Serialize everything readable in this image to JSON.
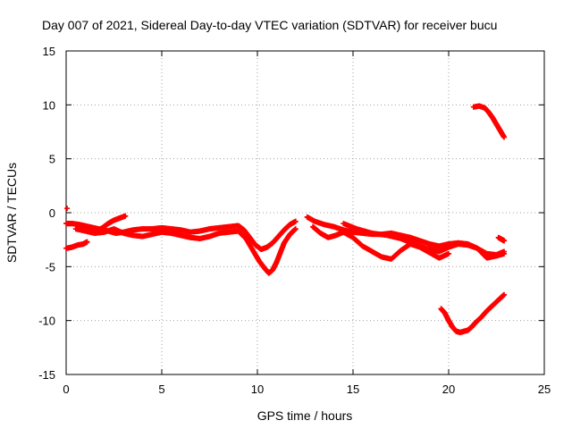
{
  "chart_data": {
    "type": "scatter",
    "title": "Day 007 of 2021, Sidereal Day-to-day VTEC variation (SDTVAR) for receiver bucu",
    "xlabel": "GPS time / hours",
    "ylabel": "SDTVAR / TECUs",
    "xlim": [
      0,
      25
    ],
    "ylim": [
      -15,
      15
    ],
    "xticks": [
      0,
      5,
      10,
      15,
      20,
      25
    ],
    "yticks": [
      -15,
      -10,
      -5,
      0,
      5,
      10,
      15
    ],
    "grid": true,
    "marker": "+",
    "color": "#ff0000",
    "series": [
      {
        "name": "track-upper-main",
        "x": [
          0.0,
          0.3,
          0.7,
          1.2,
          1.7,
          2.2,
          2.6,
          3.0,
          3.5,
          4.0,
          4.5,
          5.0,
          5.5,
          6.0,
          6.5,
          7.0,
          7.5,
          8.0,
          8.5,
          9.0,
          9.3,
          9.6,
          9.9,
          10.2,
          10.5,
          10.8,
          11.1,
          11.4,
          11.7,
          12.0
        ],
        "y": [
          -1.0,
          -1.0,
          -1.1,
          -1.3,
          -1.5,
          -1.7,
          -1.9,
          -1.8,
          -1.6,
          -1.5,
          -1.5,
          -1.4,
          -1.5,
          -1.6,
          -1.8,
          -1.7,
          -1.5,
          -1.4,
          -1.3,
          -1.2,
          -1.6,
          -2.3,
          -3.0,
          -3.4,
          -3.2,
          -2.8,
          -2.2,
          -1.6,
          -1.1,
          -0.8
        ]
      },
      {
        "name": "track-lower-main",
        "x": [
          0.5,
          1.0,
          1.5,
          2.0,
          2.5,
          3.0,
          3.5,
          4.0,
          4.5,
          5.0,
          5.5,
          6.0,
          6.5,
          7.0,
          7.5,
          8.0,
          8.5,
          9.0,
          9.4,
          9.8,
          10.1,
          10.4,
          10.6,
          10.8,
          11.0,
          11.2,
          11.4,
          11.7,
          12.0
        ],
        "y": [
          -1.5,
          -1.7,
          -1.9,
          -1.8,
          -1.5,
          -1.9,
          -2.1,
          -2.2,
          -2.0,
          -1.8,
          -1.9,
          -2.1,
          -2.3,
          -2.4,
          -2.2,
          -1.9,
          -1.8,
          -1.7,
          -2.4,
          -3.6,
          -4.5,
          -5.2,
          -5.6,
          -5.3,
          -4.6,
          -3.7,
          -2.8,
          -2.0,
          -1.5
        ]
      },
      {
        "name": "track-early-short",
        "x": [
          0.0,
          0.3,
          0.6,
          0.9,
          1.1
        ],
        "y": [
          -3.3,
          -3.2,
          -3.0,
          -2.9,
          -2.7
        ]
      },
      {
        "name": "track-early-rising",
        "x": [
          1.6,
          1.9,
          2.2,
          2.5,
          2.8,
          3.1
        ],
        "y": [
          -1.7,
          -1.4,
          -1.0,
          -0.7,
          -0.5,
          -0.3
        ]
      },
      {
        "name": "track-start-point",
        "x": [
          0.05
        ],
        "y": [
          0.4
        ]
      },
      {
        "name": "track-afternoon-a",
        "x": [
          12.6,
          13.0,
          13.5,
          14.0,
          14.5,
          15.0,
          15.5,
          16.0,
          16.5,
          17.0,
          17.5,
          18.0,
          18.5,
          19.0,
          19.5,
          20.0,
          20.5,
          21.0,
          21.5,
          22.0,
          22.5,
          22.9
        ],
        "y": [
          -0.4,
          -0.8,
          -1.1,
          -1.3,
          -1.6,
          -1.8,
          -1.9,
          -2.0,
          -2.0,
          -1.9,
          -2.1,
          -2.3,
          -2.6,
          -2.9,
          -3.1,
          -2.9,
          -2.8,
          -2.9,
          -3.3,
          -3.8,
          -3.9,
          -3.6
        ]
      },
      {
        "name": "track-afternoon-b",
        "x": [
          12.9,
          13.3,
          13.7,
          14.1,
          14.5,
          15.0,
          15.5,
          16.0,
          16.5,
          17.0,
          17.5,
          18.0,
          18.5,
          19.0,
          19.5,
          20.0
        ],
        "y": [
          -1.3,
          -1.9,
          -2.3,
          -2.1,
          -1.8,
          -2.3,
          -3.1,
          -3.6,
          -4.1,
          -4.3,
          -3.5,
          -2.9,
          -3.2,
          -3.7,
          -4.2,
          -3.8
        ]
      },
      {
        "name": "track-afternoon-c",
        "x": [
          14.5,
          15.2,
          16.0,
          16.8,
          17.5,
          18.2,
          18.8,
          19.5,
          20.0,
          20.5,
          21.0,
          21.5,
          22.0,
          22.5,
          22.9
        ],
        "y": [
          -1.0,
          -1.5,
          -1.9,
          -2.1,
          -2.4,
          -2.9,
          -3.3,
          -3.6,
          -3.2,
          -2.9,
          -3.0,
          -3.3,
          -4.2,
          -4.0,
          -3.8
        ]
      },
      {
        "name": "track-late-upper",
        "x": [
          21.3,
          21.6,
          21.9,
          22.1,
          22.3,
          22.5,
          22.7,
          22.9
        ],
        "y": [
          9.8,
          9.9,
          9.7,
          9.3,
          8.8,
          8.2,
          7.6,
          7.0
        ]
      },
      {
        "name": "track-late-lower",
        "x": [
          19.6,
          19.8,
          20.0,
          20.2,
          20.4,
          20.6,
          20.8,
          21.0,
          21.2,
          21.4,
          21.7,
          22.0,
          22.3,
          22.6,
          22.9
        ],
        "y": [
          -8.9,
          -9.3,
          -10.0,
          -10.6,
          -11.0,
          -11.1,
          -11.0,
          -10.9,
          -10.6,
          -10.2,
          -9.7,
          -9.1,
          -8.6,
          -8.1,
          -7.6
        ]
      },
      {
        "name": "track-late-short",
        "x": [
          22.6,
          22.8,
          22.9
        ],
        "y": [
          -2.3,
          -2.5,
          -2.6
        ]
      }
    ]
  }
}
